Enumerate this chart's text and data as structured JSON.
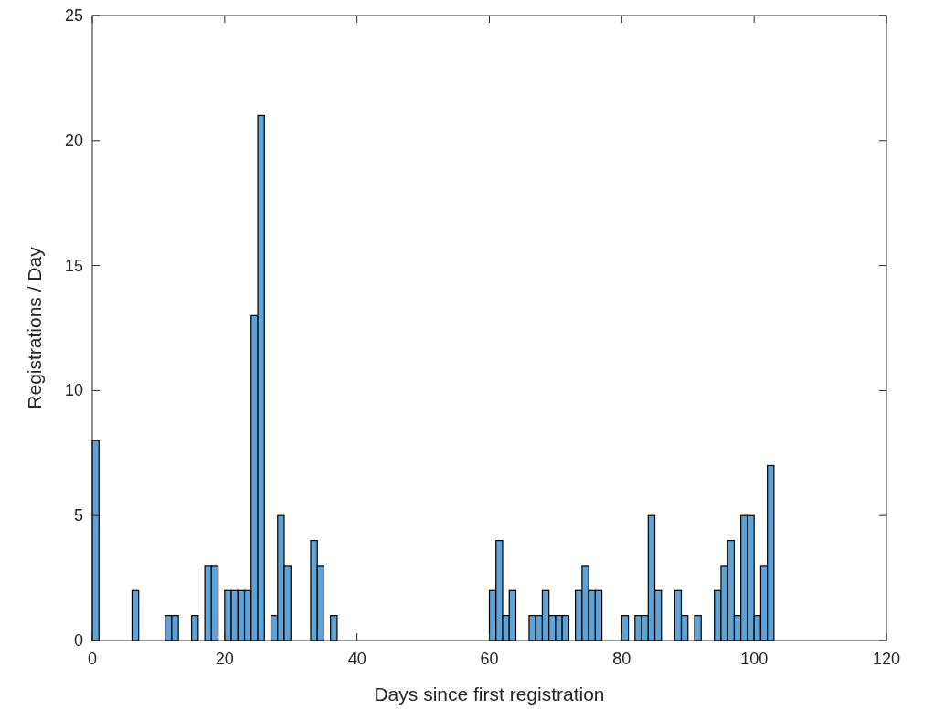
{
  "chart_data": {
    "type": "histogram",
    "xlabel": "Days since first registration",
    "ylabel": "Registrations / Day",
    "color": "#5fa2d6",
    "bins": [
      0,
      1,
      2,
      3,
      4,
      5,
      6,
      7,
      8,
      9,
      10,
      11,
      12,
      13,
      14,
      15,
      16,
      17,
      18,
      19,
      20,
      21,
      22,
      23,
      24,
      25,
      26,
      27,
      28,
      29,
      30,
      31,
      32,
      33,
      34,
      35,
      36,
      37,
      38,
      39,
      40,
      41,
      42,
      43,
      44,
      45,
      46,
      47,
      48,
      49,
      50,
      51,
      52,
      53,
      54,
      55,
      56,
      57,
      58,
      59,
      60,
      61,
      62,
      63,
      64,
      65,
      66,
      67,
      68,
      69,
      70,
      71,
      72,
      73,
      74,
      75,
      76,
      77,
      78,
      79,
      80,
      81,
      82,
      83,
      84,
      85,
      86,
      87,
      88,
      89,
      90,
      91,
      92,
      93,
      94,
      95,
      96,
      97,
      98,
      99,
      100,
      101,
      102,
      103
    ],
    "values": [
      8,
      0,
      0,
      0,
      0,
      0,
      2,
      0,
      0,
      0,
      0,
      1,
      1,
      0,
      0,
      1,
      0,
      3,
      3,
      0,
      2,
      2,
      2,
      2,
      13,
      21,
      0,
      1,
      5,
      3,
      0,
      0,
      0,
      4,
      3,
      0,
      1,
      0,
      0,
      0,
      0,
      0,
      0,
      0,
      0,
      0,
      0,
      0,
      0,
      0,
      0,
      0,
      0,
      0,
      0,
      0,
      0,
      0,
      0,
      0,
      2,
      4,
      1,
      2,
      0,
      0,
      1,
      1,
      2,
      1,
      1,
      1,
      0,
      2,
      3,
      2,
      2,
      0,
      0,
      0,
      1,
      0,
      1,
      1,
      5,
      2,
      0,
      0,
      2,
      1,
      0,
      1,
      0,
      0,
      2,
      3,
      4,
      1,
      5,
      5,
      1,
      3,
      7
    ],
    "xlim": [
      0,
      120
    ],
    "xticks": [
      0,
      20,
      40,
      60,
      80,
      100,
      120
    ],
    "ylim": [
      0,
      25
    ],
    "yticks": [
      0,
      5,
      10,
      15,
      20,
      25
    ]
  }
}
